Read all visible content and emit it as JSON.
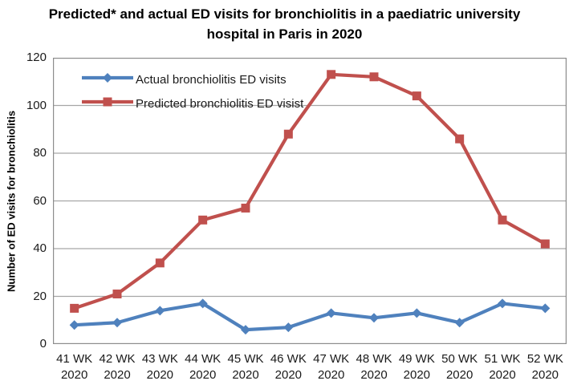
{
  "chart_data": {
    "type": "line",
    "title": "Predicted* and actual ED visits for bronchiolitis in a paediatric university hospital in Paris in 2020",
    "title_lines": [
      "Predicted* and actual ED visits for bronchiolitis in a paediatric university",
      "hospital in Paris in 2020"
    ],
    "xlabel": "",
    "ylabel": "Number of ED visits for bronchiolitis",
    "ylim": [
      0,
      120
    ],
    "yticks": [
      0,
      20,
      40,
      60,
      80,
      100,
      120
    ],
    "grid": true,
    "legend_position": "top-left-inside",
    "categories": [
      "41 WK 2020",
      "42 WK 2020",
      "43 WK 2020",
      "44 WK 2020",
      "45 WK 2020",
      "46 WK 2020",
      "47 WK 2020",
      "48 WK 2020",
      "49 WK 2020",
      "50 WK 2020",
      "51 WK 2020",
      "52 WK 2020"
    ],
    "category_lines": [
      [
        "41 WK",
        "2020"
      ],
      [
        "42 WK",
        "2020"
      ],
      [
        "43 WK",
        "2020"
      ],
      [
        "44 WK",
        "2020"
      ],
      [
        "45 WK",
        "2020"
      ],
      [
        "46 WK",
        "2020"
      ],
      [
        "47 WK",
        "2020"
      ],
      [
        "48 WK",
        "2020"
      ],
      [
        "49 WK",
        "2020"
      ],
      [
        "50 WK",
        "2020"
      ],
      [
        "51 WK",
        "2020"
      ],
      [
        "52 WK",
        "2020"
      ]
    ],
    "series": [
      {
        "name": "Actual bronchiolitis ED visits",
        "color": "#4F81BD",
        "marker": "diamond",
        "values": [
          8,
          9,
          14,
          17,
          6,
          7,
          13,
          11,
          13,
          9,
          17,
          15
        ]
      },
      {
        "name": "Predicted bronchiolitis ED visist",
        "color": "#C0504D",
        "marker": "square",
        "values": [
          15,
          21,
          34,
          52,
          57,
          88,
          113,
          112,
          104,
          86,
          52,
          42
        ]
      }
    ],
    "colors": {
      "gridline": "#A6A6A6",
      "plot_border": "#8C8C8C",
      "tick_text": "#1a1a1a",
      "title_text": "#000000"
    }
  }
}
